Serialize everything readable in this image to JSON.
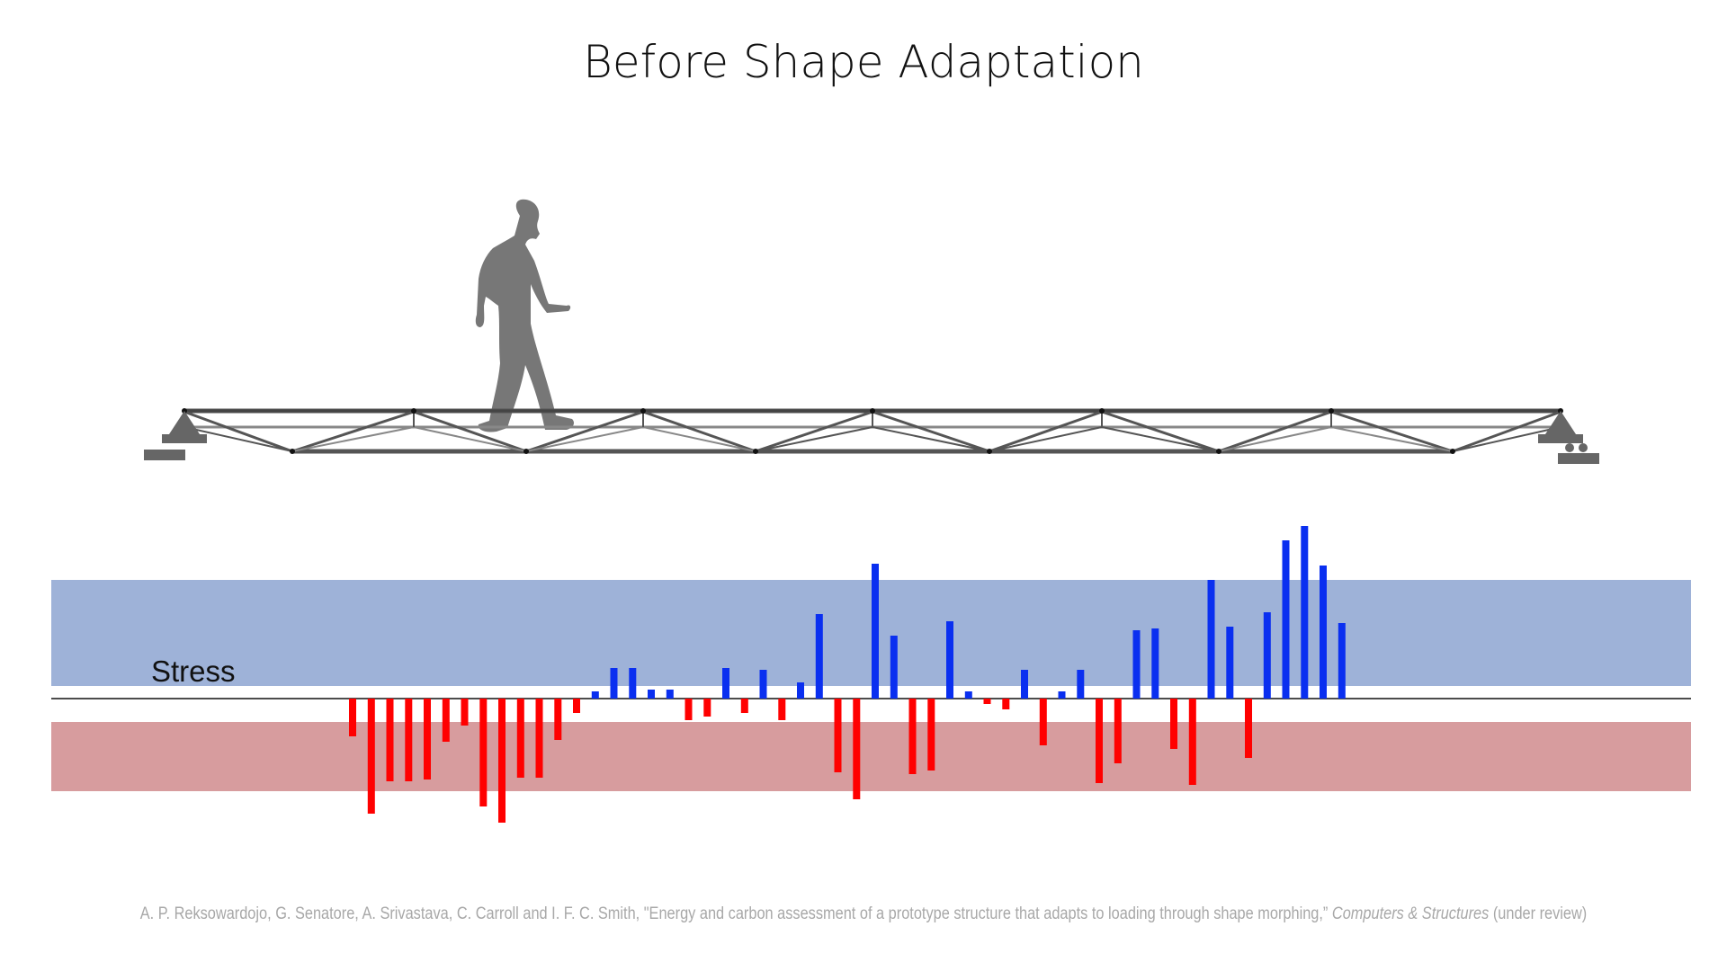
{
  "title": "Before Shape Adaptation",
  "stress_label": "Stress",
  "citation": {
    "authors_text": "A. P. Reksowardojo, G. Senatore, A. Srivastava, C. Carroll and  I. F. C. Smith, \"Energy and carbon assessment of a prototype structure that adapts to loading through shape morphing,” ",
    "journal": "Computers & Structures",
    "status": " (under review)"
  },
  "colors": {
    "tension_bar": "#0a2ff0",
    "compression_bar": "#ff0000",
    "tension_band": "#9eb2d8",
    "compression_band": "#d79c9e",
    "truss": "#555555",
    "person": "#777777"
  },
  "icons": [
    "walking-person-icon",
    "pin-support-icon",
    "roller-support-icon"
  ],
  "chart_data": {
    "type": "bar",
    "series": [
      {
        "values": [
          -42,
          -128,
          -92,
          -92,
          -90,
          -48,
          -30,
          -120,
          -138,
          -88,
          -88,
          -46,
          -16,
          8,
          34,
          34,
          10,
          10,
          -24,
          -20,
          34,
          -16,
          32,
          -24,
          18,
          94,
          -82,
          -112,
          150,
          70,
          -84,
          -80,
          86,
          8,
          -6,
          -12,
          32,
          -52,
          8,
          32,
          -94,
          -72,
          76,
          78,
          -56,
          -96,
          132,
          80,
          -66,
          96,
          176,
          192,
          148,
          84
        ],
        "color": "tension: blue / compression: red"
      }
    ]
  }
}
